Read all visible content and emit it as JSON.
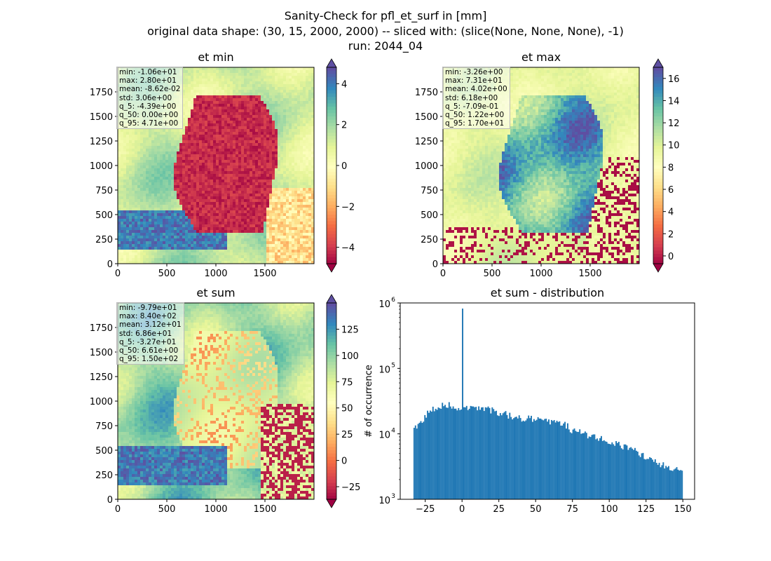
{
  "figure": {
    "title_line1": "Sanity-Check for pfl_et_surf in [mm]",
    "title_line2": "original data shape: (30, 15, 2000, 2000) -- sliced with: (slice(None, None, None), -1)",
    "title_line3": "run: 2044_04"
  },
  "chart_data": [
    {
      "type": "heatmap",
      "title": "et min",
      "x_ticks": [
        "0",
        "500",
        "1000",
        "1500"
      ],
      "y_ticks": [
        "0",
        "250",
        "500",
        "750",
        "1000",
        "1250",
        "1500",
        "1750"
      ],
      "xlim": [
        0,
        2000
      ],
      "ylim": [
        0,
        2000
      ],
      "colormap": "Spectral",
      "colorbar": {
        "ticks": [
          "4",
          "2",
          "0",
          "−2",
          "−4"
        ],
        "range": [
          -4.8,
          4.8
        ],
        "extend": "both"
      },
      "stats": [
        "min: -1.06e+01",
        "max: 2.80e+01",
        "mean: -8.62e-02",
        "std: 3.06e+00",
        "q_5: -4.39e+00",
        "q_50: 0.00e+00",
        "q_95: 4.71e+00"
      ]
    },
    {
      "type": "heatmap",
      "title": "et max",
      "x_ticks": [
        "0",
        "500",
        "1000",
        "1500"
      ],
      "y_ticks": [
        "0",
        "250",
        "500",
        "750",
        "1000",
        "1250",
        "1500",
        "1750"
      ],
      "xlim": [
        0,
        2000
      ],
      "ylim": [
        0,
        2000
      ],
      "colormap": "Spectral",
      "colorbar": {
        "ticks": [
          "16",
          "14",
          "12",
          "10",
          "8",
          "6",
          "4",
          "2",
          "0"
        ],
        "range": [
          -0.7,
          17
        ],
        "extend": "both"
      },
      "stats": [
        "min: -3.26e+00",
        "max: 7.31e+01",
        "mean: 4.02e+00",
        "std: 6.18e+00",
        "q_5: -7.09e-01",
        "q_50: 1.22e+00",
        "q_95: 1.70e+01"
      ]
    },
    {
      "type": "heatmap",
      "title": "et sum",
      "x_ticks": [
        "0",
        "500",
        "1000",
        "1500"
      ],
      "y_ticks": [
        "0",
        "250",
        "500",
        "750",
        "1000",
        "1250",
        "1500",
        "1750"
      ],
      "xlim": [
        0,
        2000
      ],
      "ylim": [
        0,
        2000
      ],
      "colormap": "Spectral",
      "colorbar": {
        "ticks": [
          "125",
          "100",
          "75",
          "50",
          "25",
          "0",
          "−25"
        ],
        "range": [
          -37,
          150
        ],
        "extend": "both"
      },
      "stats": [
        "min: -9.79e+01",
        "max: 8.40e+02",
        "mean: 3.12e+01",
        "std: 6.86e+01",
        "q_5: -3.27e+01",
        "q_50: 6.61e+00",
        "q_95: 1.50e+02"
      ]
    },
    {
      "type": "bar",
      "title": "et sum - distribution",
      "ylabel": "# of occurrence",
      "xlabel": "",
      "yscale": "log",
      "ylim": [
        1000,
        1000000
      ],
      "xlim": [
        -42,
        158
      ],
      "y_tick_labels": [
        "10",
        "10",
        "10",
        "10"
      ],
      "y_tick_exponents": [
        "3",
        "4",
        "5",
        "6"
      ],
      "x_tick_labels": [
        "−25",
        "0",
        "25",
        "50",
        "75",
        "100",
        "125",
        "150"
      ],
      "x_tick_values": [
        -25,
        0,
        25,
        50,
        75,
        100,
        125,
        150
      ],
      "bar_color": "#1f77b4",
      "bin_range": [
        -33,
        150
      ],
      "spike": {
        "x": 0,
        "count": 820000
      },
      "approx_counts_by_x": [
        [
          -33,
          11000
        ],
        [
          -28,
          15000
        ],
        [
          -24,
          20000
        ],
        [
          -20,
          24000
        ],
        [
          -15,
          27000
        ],
        [
          -10,
          28000
        ],
        [
          -5,
          26000
        ],
        [
          0,
          23000
        ],
        [
          5,
          25000
        ],
        [
          10,
          26000
        ],
        [
          15,
          25000
        ],
        [
          20,
          23000
        ],
        [
          25,
          21000
        ],
        [
          30,
          20000
        ],
        [
          35,
          18000
        ],
        [
          40,
          17000
        ],
        [
          45,
          17000
        ],
        [
          50,
          17000
        ],
        [
          55,
          16000
        ],
        [
          60,
          15000
        ],
        [
          65,
          15000
        ],
        [
          70,
          14000
        ],
        [
          75,
          11000
        ],
        [
          80,
          10500
        ],
        [
          85,
          9500
        ],
        [
          90,
          9000
        ],
        [
          95,
          8500
        ],
        [
          100,
          7500
        ],
        [
          105,
          7000
        ],
        [
          110,
          6500
        ],
        [
          115,
          6000
        ],
        [
          120,
          5000
        ],
        [
          125,
          4500
        ],
        [
          130,
          4000
        ],
        [
          135,
          3500
        ],
        [
          140,
          3200
        ],
        [
          145,
          3000
        ],
        [
          150,
          2600
        ]
      ]
    }
  ]
}
